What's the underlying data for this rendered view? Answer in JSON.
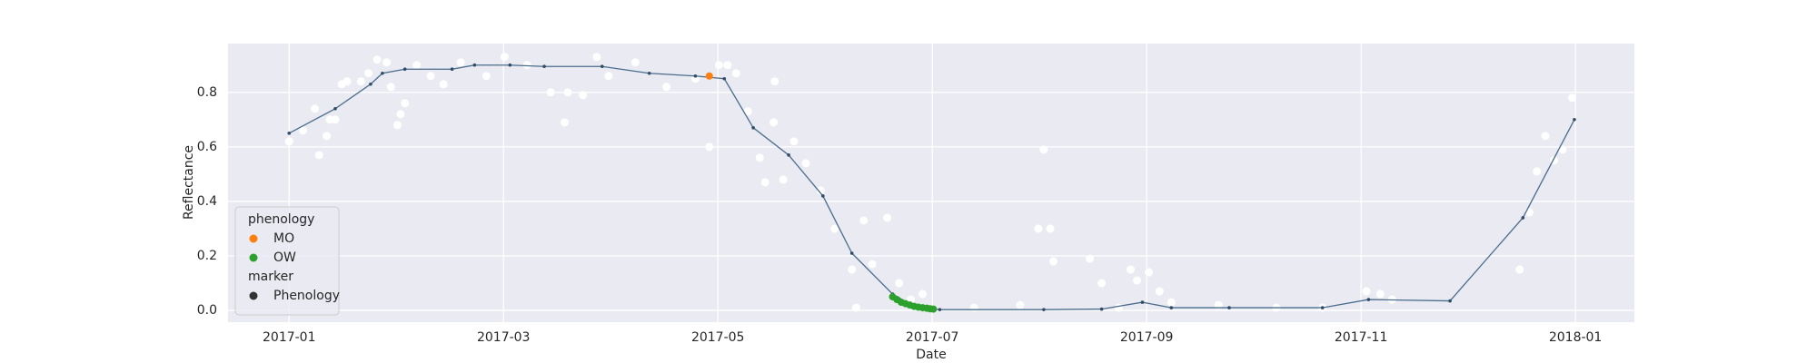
{
  "chart_data": {
    "type": "scatter",
    "xlabel": "Date",
    "ylabel": "Reflectance",
    "xlim": [
      -0.57,
      12.55
    ],
    "xticks": [
      {
        "value": 0,
        "label": "2017-01"
      },
      {
        "value": 2,
        "label": "2017-03"
      },
      {
        "value": 4,
        "label": "2017-05"
      },
      {
        "value": 6,
        "label": "2017-07"
      },
      {
        "value": 8,
        "label": "2017-09"
      },
      {
        "value": 10,
        "label": "2017-11"
      },
      {
        "value": 12,
        "label": "2018-01"
      }
    ],
    "ylim": [
      -0.043,
      0.979
    ],
    "yticks": [
      {
        "value": 0,
        "label": "0.0"
      },
      0.2,
      0.4,
      0.6,
      0.8
    ],
    "grid": true,
    "background": "#eaeaf2",
    "series": [
      {
        "type": "scatter",
        "color": "#ffffff",
        "x": [
          0,
          0.13,
          0.24,
          0.28,
          0.35,
          0.38,
          0.43,
          0.49,
          0.54,
          0.67,
          0.74,
          0.82,
          0.91,
          0.95,
          1.01,
          1.04,
          1.08,
          1.19,
          1.32,
          1.44,
          1.6,
          1.84,
          2.01,
          2.22,
          2.44,
          2.57,
          2.6,
          2.74,
          2.87,
          2.98,
          3.23,
          3.52,
          3.79,
          3.92,
          4.01,
          4.09,
          4.17,
          4.28,
          4.39,
          4.44,
          4.52,
          4.53,
          4.61,
          4.71,
          4.82,
          4.96,
          5.09,
          5.25,
          5.29,
          5.36,
          5.44,
          5.58,
          5.69,
          5.8,
          5.91,
          6.39,
          6.82,
          6.99,
          7.04,
          7.1,
          7.13,
          7.47,
          7.58,
          7.74,
          7.85,
          7.91,
          8.02,
          8.12,
          8.23,
          8.67,
          9.21,
          9.64,
          10.05,
          10.18,
          10.29,
          11.48,
          11.57,
          11.64,
          11.72,
          11.8,
          11.88,
          11.97
        ],
        "values": [
          0.62,
          0.66,
          0.74,
          0.57,
          0.64,
          0.7,
          0.7,
          0.83,
          0.84,
          0.84,
          0.87,
          0.92,
          0.91,
          0.82,
          0.68,
          0.72,
          0.76,
          0.9,
          0.86,
          0.83,
          0.91,
          0.86,
          0.93,
          0.9,
          0.8,
          0.69,
          0.8,
          0.79,
          0.93,
          0.86,
          0.91,
          0.82,
          0.85,
          0.6,
          0.9,
          0.9,
          0.87,
          0.73,
          0.56,
          0.47,
          0.69,
          0.84,
          0.48,
          0.62,
          0.54,
          0.44,
          0.3,
          0.15,
          0.01,
          0.33,
          0.17,
          0.34,
          0.1,
          0.04,
          0.06,
          0.01,
          0.02,
          0.3,
          0.59,
          0.3,
          0.18,
          0.19,
          0.1,
          0.01,
          0.15,
          0.11,
          0.14,
          0.07,
          0.03,
          0.02,
          0.01,
          0.01,
          0.07,
          0.06,
          0.04,
          0.15,
          0.36,
          0.51,
          0.64,
          0.55,
          0.59,
          0.78
        ]
      },
      {
        "type": "line",
        "color": "#4a6d8c",
        "marker_color": "#2f4b66",
        "x": [
          0,
          0.43,
          0.76,
          0.87,
          1.08,
          1.52,
          1.73,
          2.06,
          2.38,
          2.92,
          3.36,
          3.79,
          4.06,
          4.33,
          4.66,
          4.98,
          5.25,
          5.63,
          5.85,
          6.07,
          7.04,
          7.58,
          7.96,
          8.23,
          8.77,
          9.64,
          10.07,
          10.83,
          11.51,
          11.99
        ],
        "values": [
          0.65,
          0.74,
          0.83,
          0.87,
          0.885,
          0.885,
          0.9,
          0.9,
          0.895,
          0.895,
          0.87,
          0.86,
          0.85,
          0.67,
          0.57,
          0.42,
          0.21,
          0.06,
          0.01,
          0.003,
          0.003,
          0.005,
          0.03,
          0.01,
          0.01,
          0.01,
          0.04,
          0.035,
          0.34,
          0.7
        ]
      },
      {
        "type": "scatter",
        "name": "MO",
        "color": "#ff7f0e",
        "x": [
          3.92
        ],
        "values": [
          0.86
        ]
      },
      {
        "type": "scatter",
        "name": "OW",
        "color": "#2ca02c",
        "x": [
          5.63,
          5.67,
          5.71,
          5.75,
          5.79,
          5.83,
          5.87,
          5.91,
          5.95,
          5.98,
          6.01
        ],
        "values": [
          0.05,
          0.04,
          0.03,
          0.025,
          0.02,
          0.015,
          0.012,
          0.01,
          0.008,
          0.006,
          0.005
        ]
      }
    ],
    "legend": {
      "loc": "lower left",
      "phenology_title": "phenology",
      "marker_title": "marker",
      "marker_label": "Phenology",
      "marker_color": "#333333"
    }
  }
}
